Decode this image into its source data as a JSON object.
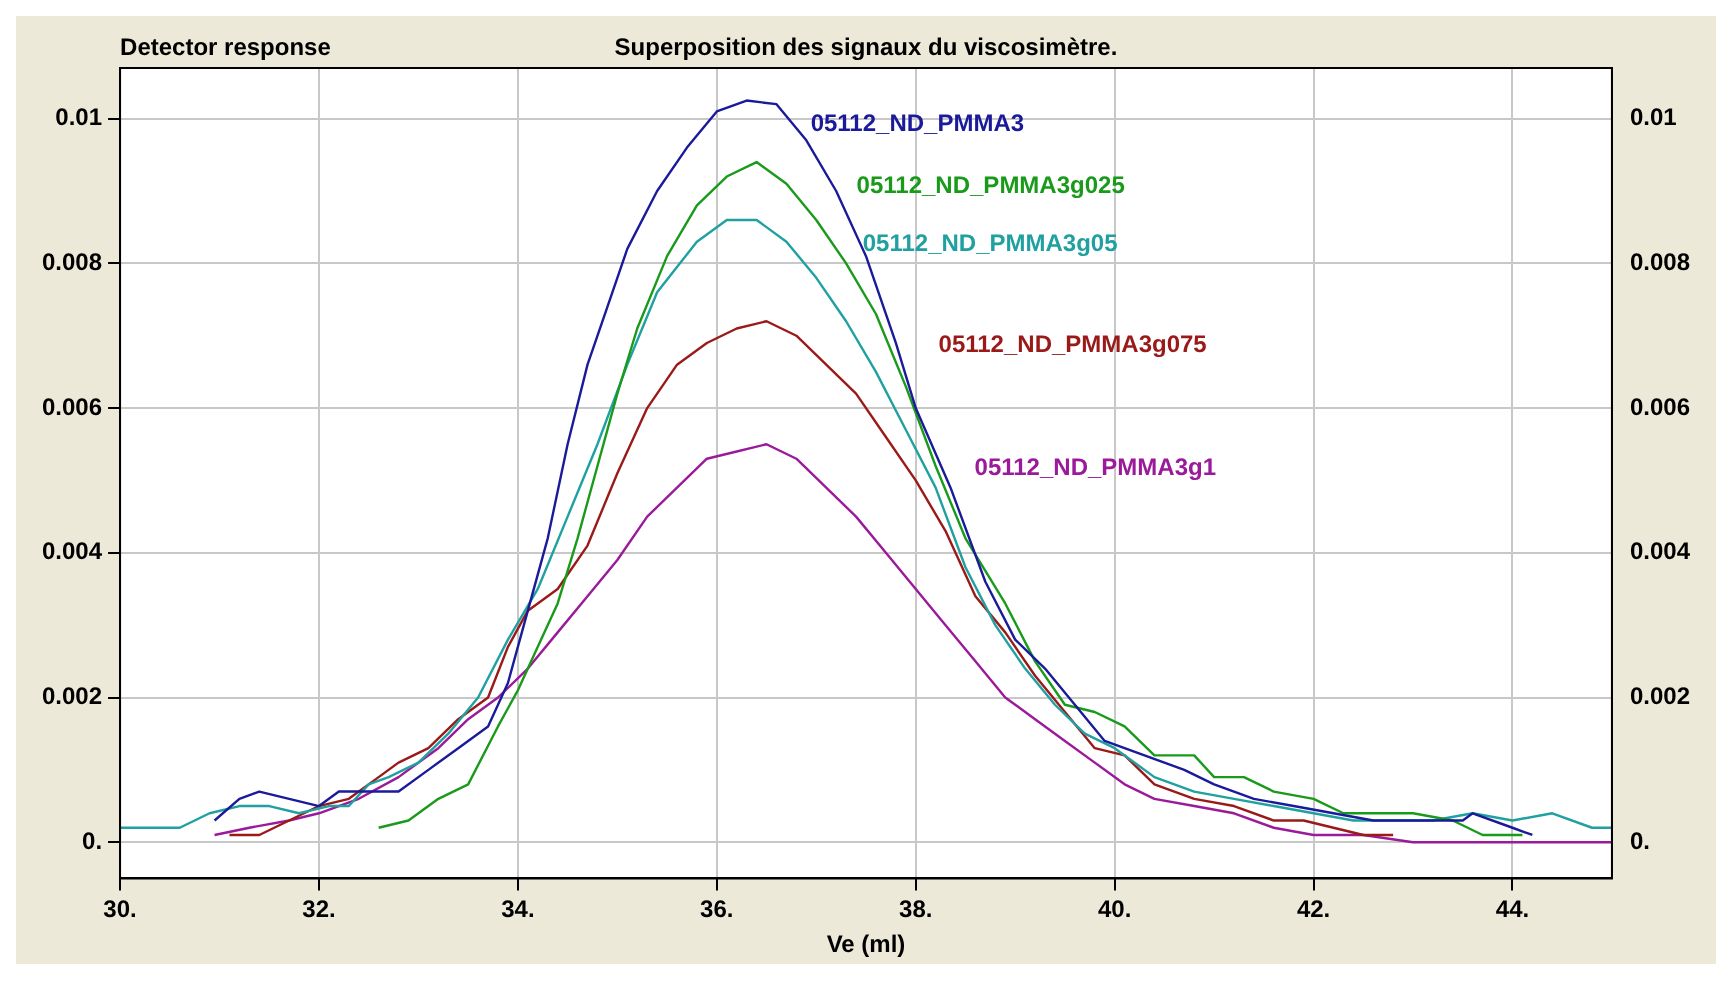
{
  "chart_data": {
    "type": "line",
    "title": "Superposition des signaux du viscosimètre.",
    "ylabel": "Detector response",
    "xlabel": "Ve (ml)",
    "xlim": [
      30,
      45
    ],
    "xticks": [
      {
        "value": 30,
        "label": "30."
      },
      {
        "value": 32,
        "label": "32."
      },
      {
        "value": 34,
        "label": "34."
      },
      {
        "value": 36,
        "label": "36."
      },
      {
        "value": 38,
        "label": "38."
      },
      {
        "value": 40,
        "label": "40."
      },
      {
        "value": 42,
        "label": "42."
      },
      {
        "value": 44,
        "label": "44."
      }
    ],
    "ylim": [
      -0.0005,
      0.0107
    ],
    "yticks": [
      {
        "value": 0,
        "label": "0."
      },
      0.002,
      0.004,
      0.006,
      0.008,
      0.01
    ],
    "y2lim": [
      -0.0005,
      0.0107
    ],
    "y2ticks": [
      {
        "value": 0,
        "label": "0."
      },
      0.002,
      0.004,
      0.006,
      0.008,
      0.01
    ],
    "grid": true,
    "legend": false,
    "marker": "none",
    "line_style": "solid",
    "series": [
      {
        "name": "05112_ND_PMMA3",
        "color": "#1a1a9a",
        "x": [
          30.95,
          31.2,
          31.4,
          31.7,
          32.0,
          32.2,
          32.5,
          32.8,
          33.1,
          33.4,
          33.7,
          33.9,
          34.1,
          34.3,
          34.5,
          34.7,
          34.9,
          35.1,
          35.4,
          35.7,
          36.0,
          36.3,
          36.6,
          36.9,
          37.2,
          37.5,
          37.8,
          38.0,
          38.35,
          38.7,
          39.0,
          39.3,
          39.6,
          39.9,
          40.3,
          40.7,
          41.0,
          41.4,
          41.8,
          42.2,
          42.6,
          43.0,
          43.5,
          43.6,
          44.0,
          44.2
        ],
        "values": [
          0.0003,
          0.0006,
          0.0007,
          0.0006,
          0.0005,
          0.0007,
          0.0007,
          0.0007,
          0.001,
          0.0013,
          0.0016,
          0.0022,
          0.0032,
          0.0042,
          0.0055,
          0.0066,
          0.0074,
          0.0082,
          0.009,
          0.0096,
          0.0101,
          0.01025,
          0.0102,
          0.0097,
          0.009,
          0.0081,
          0.0069,
          0.006,
          0.0049,
          0.0036,
          0.0028,
          0.0024,
          0.0019,
          0.0014,
          0.0012,
          0.001,
          0.0008,
          0.0006,
          0.0005,
          0.0004,
          0.0003,
          0.0003,
          0.0003,
          0.0004,
          0.0002,
          0.0001
        ]
      },
      {
        "name": "05112_ND_PMMA3g025",
        "color": "#1a9a1a",
        "x": [
          32.6,
          32.9,
          33.2,
          33.5,
          33.8,
          34.0,
          34.2,
          34.4,
          34.6,
          34.8,
          35.0,
          35.2,
          35.5,
          35.8,
          36.1,
          36.4,
          36.7,
          37.0,
          37.3,
          37.6,
          37.9,
          38.2,
          38.5,
          38.9,
          39.2,
          39.5,
          39.8,
          40.1,
          40.4,
          40.8,
          41.0,
          41.3,
          41.6,
          42.0,
          42.3,
          42.7,
          43.0,
          43.4,
          43.7,
          44.1
        ],
        "values": [
          0.0002,
          0.0003,
          0.0006,
          0.0008,
          0.0016,
          0.0021,
          0.0027,
          0.0033,
          0.0042,
          0.0052,
          0.0062,
          0.0071,
          0.0081,
          0.0088,
          0.0092,
          0.0094,
          0.0091,
          0.0086,
          0.008,
          0.0073,
          0.0063,
          0.0052,
          0.0042,
          0.0033,
          0.0025,
          0.0019,
          0.0018,
          0.0016,
          0.0012,
          0.0012,
          0.0009,
          0.0009,
          0.0007,
          0.0006,
          0.0004,
          0.0004,
          0.0004,
          0.0003,
          0.0001,
          0.0001
        ]
      },
      {
        "name": "05112_ND_PMMA3g05",
        "color": "#20a0a0",
        "x": [
          30.0,
          30.3,
          30.6,
          30.9,
          31.2,
          31.5,
          31.8,
          32.1,
          32.3,
          32.5,
          32.7,
          33.0,
          33.3,
          33.6,
          33.9,
          34.2,
          34.5,
          34.8,
          35.1,
          35.4,
          35.8,
          36.1,
          36.4,
          36.7,
          37.0,
          37.3,
          37.6,
          37.9,
          38.2,
          38.5,
          38.8,
          39.1,
          39.4,
          39.7,
          40.0,
          40.4,
          40.8,
          41.2,
          41.6,
          42.0,
          42.4,
          42.8,
          43.2,
          43.6,
          44.0,
          44.4,
          44.8,
          45.0
        ],
        "values": [
          0.0002,
          0.0002,
          0.0002,
          0.0004,
          0.0005,
          0.0005,
          0.0004,
          0.0005,
          0.0005,
          0.0008,
          0.0009,
          0.0011,
          0.0015,
          0.002,
          0.0028,
          0.0035,
          0.0045,
          0.0055,
          0.0066,
          0.0076,
          0.0083,
          0.0086,
          0.0086,
          0.0083,
          0.0078,
          0.0072,
          0.0065,
          0.0057,
          0.0049,
          0.0038,
          0.003,
          0.0024,
          0.0019,
          0.0015,
          0.0013,
          0.0009,
          0.0007,
          0.0006,
          0.0005,
          0.0004,
          0.0003,
          0.0003,
          0.0003,
          0.0004,
          0.0003,
          0.0004,
          0.0002,
          0.0002
        ]
      },
      {
        "name": "05112_ND_PMMA3g075",
        "color": "#9a1a1a",
        "x": [
          31.1,
          31.4,
          31.7,
          32.0,
          32.3,
          32.6,
          32.8,
          33.1,
          33.4,
          33.7,
          33.9,
          34.1,
          34.4,
          34.7,
          35.0,
          35.3,
          35.6,
          35.9,
          36.2,
          36.5,
          36.8,
          37.1,
          37.4,
          37.7,
          38.0,
          38.3,
          38.6,
          38.9,
          39.2,
          39.5,
          39.8,
          40.1,
          40.4,
          40.8,
          41.2,
          41.6,
          41.9,
          42.2,
          42.5,
          42.8
        ],
        "values": [
          0.0001,
          0.0001,
          0.0003,
          0.0005,
          0.0006,
          0.0009,
          0.0011,
          0.0013,
          0.0017,
          0.002,
          0.0027,
          0.0032,
          0.0035,
          0.0041,
          0.0051,
          0.006,
          0.0066,
          0.0069,
          0.0071,
          0.0072,
          0.007,
          0.0066,
          0.0062,
          0.0056,
          0.005,
          0.0043,
          0.0034,
          0.0029,
          0.0023,
          0.0018,
          0.0013,
          0.0012,
          0.0008,
          0.0006,
          0.0005,
          0.0003,
          0.0003,
          0.0002,
          0.0001,
          0.0001
        ]
      },
      {
        "name": "05112_ND_PMMA3g1",
        "color": "#9a1a9a",
        "x": [
          30.95,
          31.3,
          31.7,
          32.0,
          32.4,
          32.8,
          33.2,
          33.5,
          33.8,
          34.1,
          34.4,
          34.7,
          35.0,
          35.3,
          35.6,
          35.9,
          36.2,
          36.5,
          36.8,
          37.1,
          37.4,
          37.7,
          38.0,
          38.3,
          38.6,
          38.9,
          39.2,
          39.5,
          39.8,
          40.1,
          40.4,
          40.8,
          41.2,
          41.6,
          42.0,
          42.5,
          43.0,
          44.0,
          45.0
        ],
        "values": [
          0.0001,
          0.0002,
          0.0003,
          0.0004,
          0.0006,
          0.0009,
          0.0013,
          0.0017,
          0.002,
          0.0024,
          0.0029,
          0.0034,
          0.0039,
          0.0045,
          0.0049,
          0.0053,
          0.0054,
          0.0055,
          0.0053,
          0.0049,
          0.0045,
          0.004,
          0.0035,
          0.003,
          0.0025,
          0.002,
          0.0017,
          0.0014,
          0.0011,
          0.0008,
          0.0006,
          0.0005,
          0.0004,
          0.0002,
          0.0001,
          0.0001,
          0,
          0,
          0
        ]
      }
    ]
  }
}
